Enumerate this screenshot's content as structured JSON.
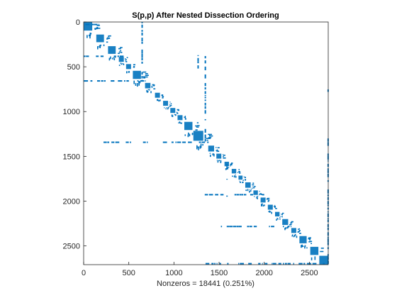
{
  "chart_data": {
    "type": "scatter",
    "subtype": "sparsity-pattern",
    "title": "S(p,p) After Nested Dissection Ordering",
    "xlabel": "Nonzeros = 18441 (0.251%)",
    "ylabel": "",
    "matrix_size": 2709,
    "xlim": [
      0,
      2709
    ],
    "ylim": [
      0,
      2709
    ],
    "y_reversed": true,
    "x_ticks": [
      0,
      500,
      1000,
      1500,
      2000,
      2500
    ],
    "y_ticks": [
      0,
      500,
      1000,
      1500,
      2000,
      2500
    ],
    "grid": false,
    "legend": "none",
    "marker_color": "#0072BD",
    "diagonal_blocks": [
      {
        "start": 0,
        "size": 95
      },
      {
        "start": 140,
        "size": 85
      },
      {
        "start": 270,
        "size": 85
      },
      {
        "start": 390,
        "size": 55
      },
      {
        "start": 470,
        "size": 55
      },
      {
        "start": 545,
        "size": 90
      },
      {
        "start": 680,
        "size": 60
      },
      {
        "start": 790,
        "size": 55
      },
      {
        "start": 880,
        "size": 55
      },
      {
        "start": 960,
        "size": 55
      },
      {
        "start": 1040,
        "size": 55
      },
      {
        "start": 1115,
        "size": 90
      },
      {
        "start": 1215,
        "size": 110
      },
      {
        "start": 1380,
        "size": 65
      },
      {
        "start": 1470,
        "size": 55
      },
      {
        "start": 1560,
        "size": 50
      },
      {
        "start": 1640,
        "size": 50
      },
      {
        "start": 1715,
        "size": 45
      },
      {
        "start": 1790,
        "size": 60
      },
      {
        "start": 1880,
        "size": 50
      },
      {
        "start": 1960,
        "size": 55
      },
      {
        "start": 2040,
        "size": 55
      },
      {
        "start": 2120,
        "size": 50
      },
      {
        "start": 2200,
        "size": 65
      },
      {
        "start": 2300,
        "size": 55
      },
      {
        "start": 2390,
        "size": 80
      },
      {
        "start": 2510,
        "size": 90
      },
      {
        "start": 2610,
        "size": 99
      }
    ],
    "separator_rows": [
      {
        "row": 20,
        "from": 0,
        "to": 170
      },
      {
        "row": 375,
        "from": 0,
        "to": 520
      },
      {
        "row": 650,
        "from": 0,
        "to": 680
      },
      {
        "row": 1335,
        "from": 220,
        "to": 1390
      },
      {
        "row": 1920,
        "from": 1300,
        "to": 2000
      },
      {
        "row": 2275,
        "from": 1520,
        "to": 2300
      },
      {
        "row": 2690,
        "from": 1350,
        "to": 2700
      }
    ],
    "separator_cols": [
      {
        "col": 640,
        "from": 0,
        "to": 650
      },
      {
        "col": 1340,
        "from": 380,
        "to": 1340
      },
      {
        "col": 2700,
        "from": 1300,
        "to": 2700
      },
      {
        "col": 2700,
        "from": 700,
        "to": 780
      },
      {
        "col": 1260,
        "from": 280,
        "to": 560
      },
      {
        "col": 1580,
        "from": 1500,
        "to": 1950
      }
    ]
  }
}
